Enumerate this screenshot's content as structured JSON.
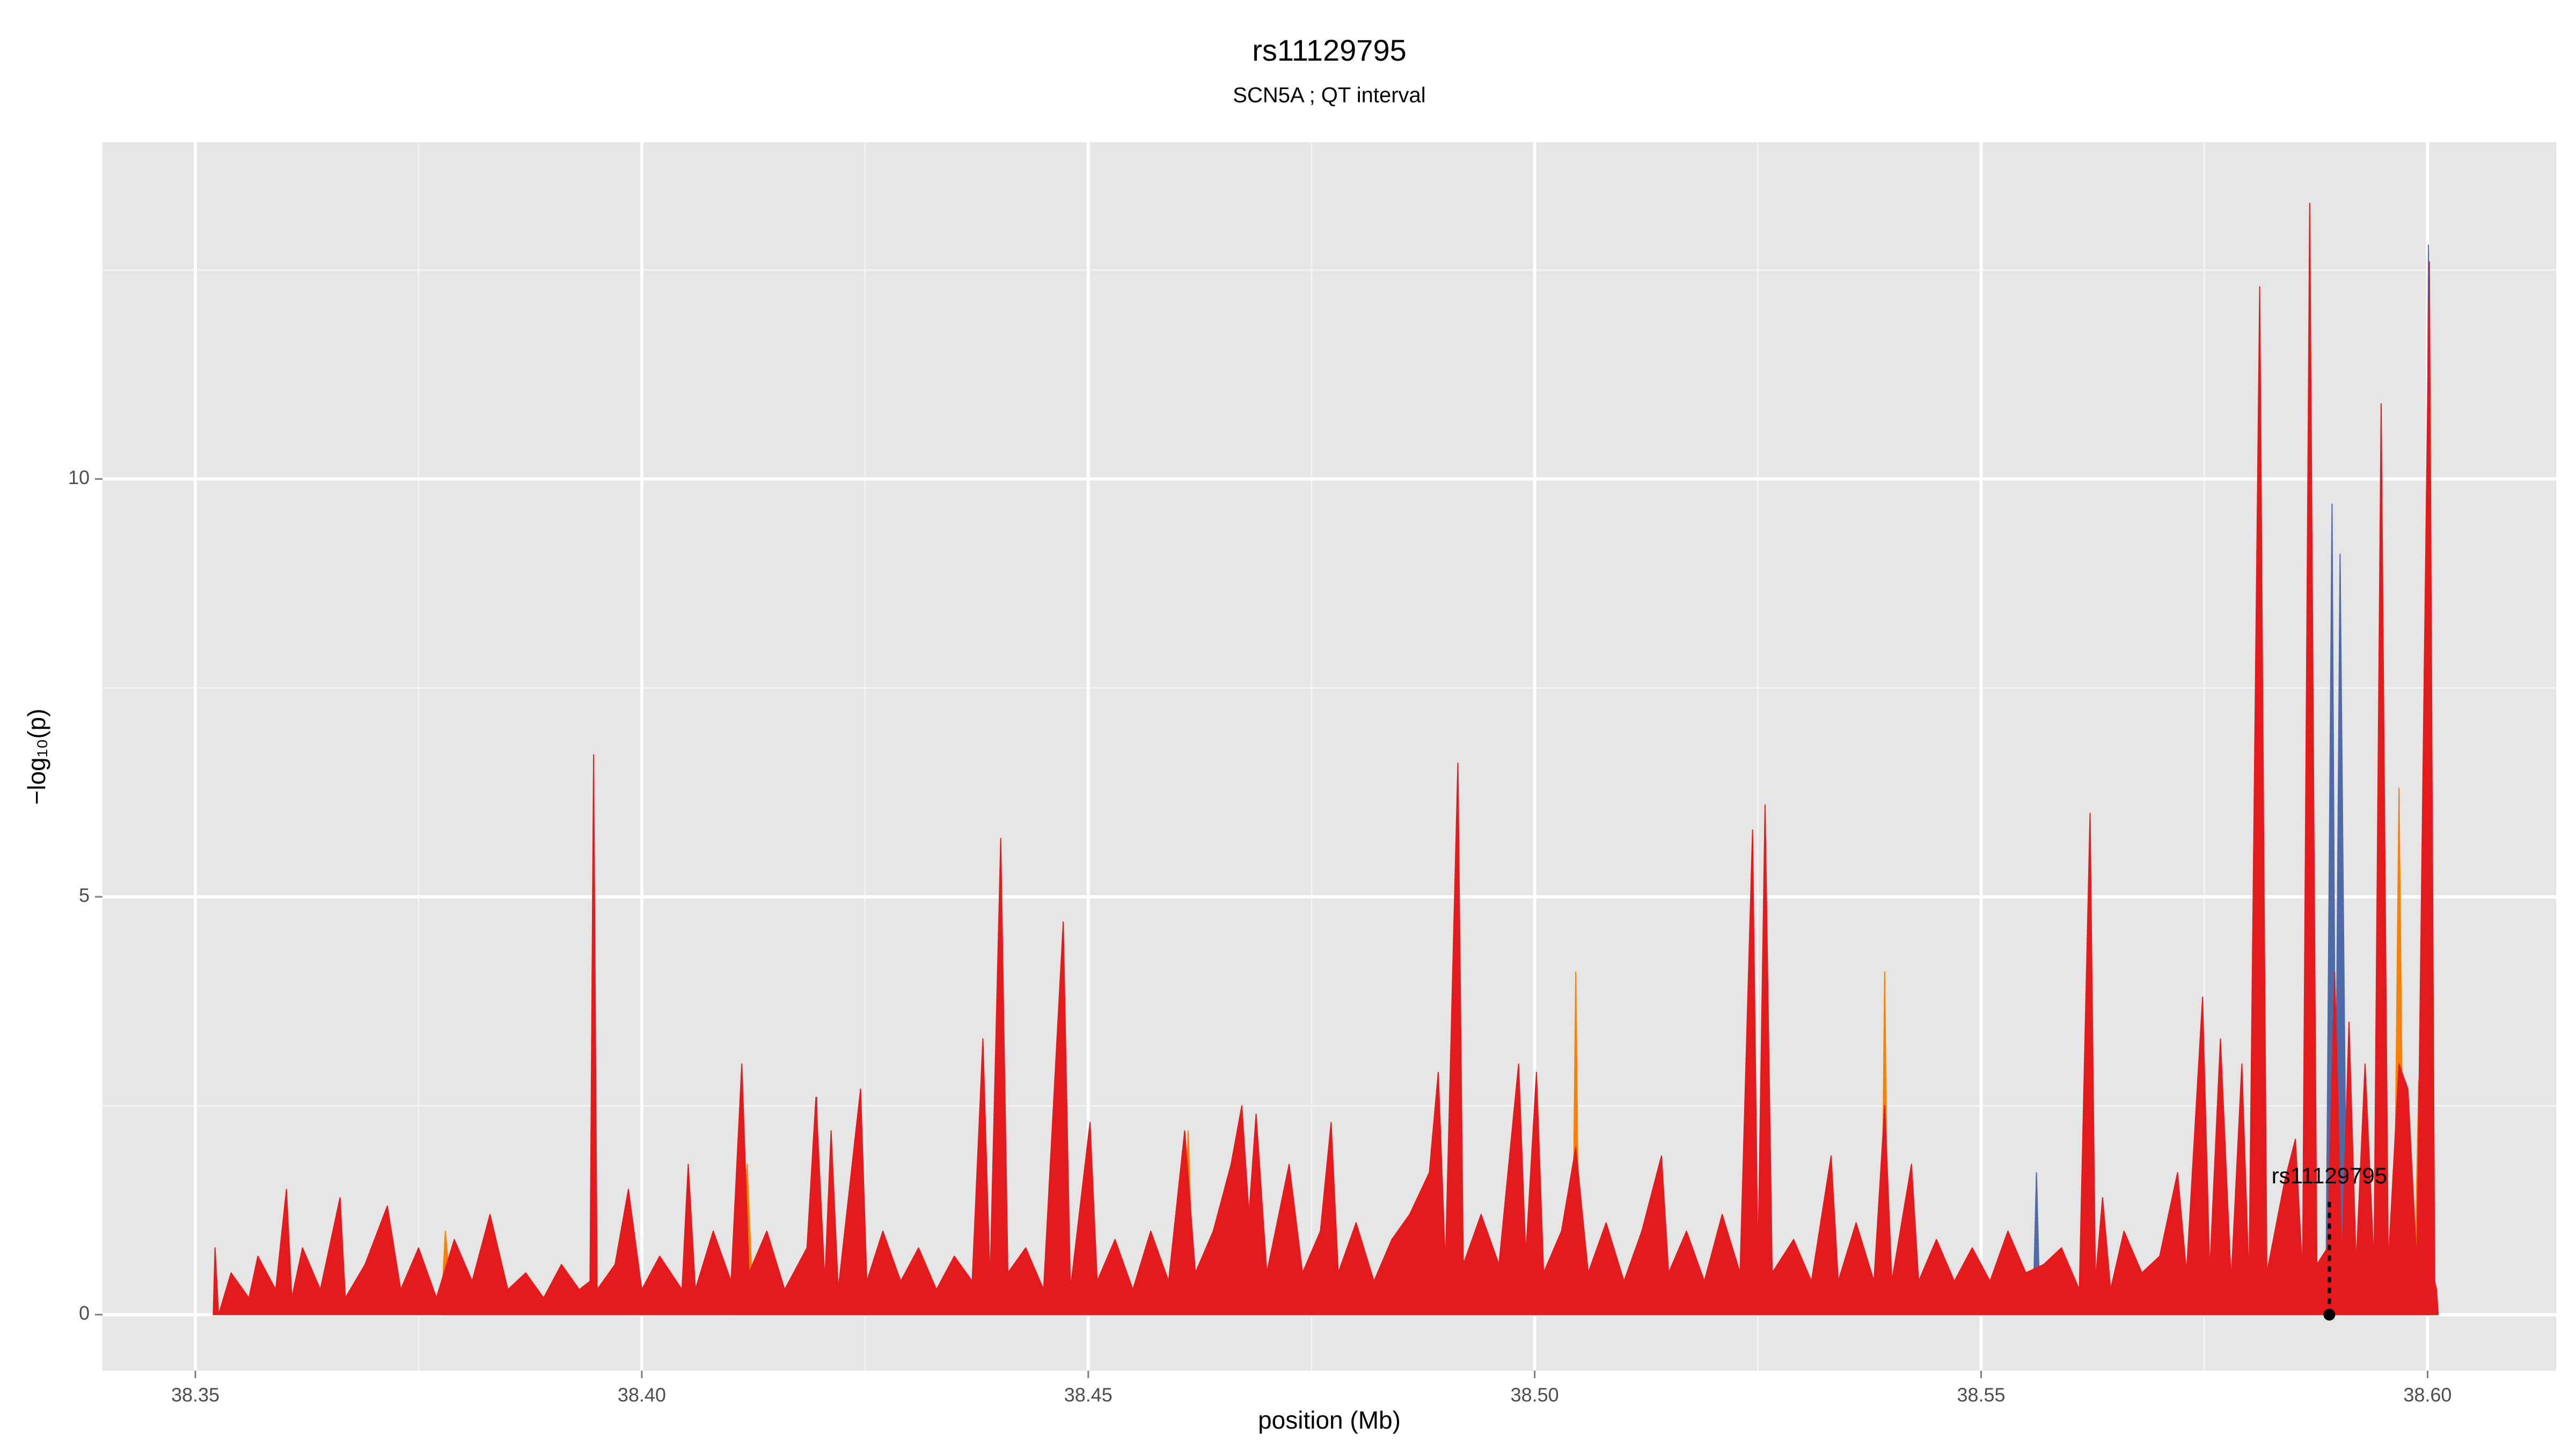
{
  "chart_data": {
    "type": "area",
    "title": "rs11129795",
    "subtitle": "SCN5A ; QT interval",
    "x_label": "position (Mb)",
    "y_label": "−log₁₀(p)",
    "xlim": [
      38.3396,
      38.6144
    ],
    "ylim": [
      -0.67,
      14.03
    ],
    "xticks": [
      38.35,
      {
        "value": 38.4,
        "label": "38.40"
      },
      38.45,
      {
        "value": 38.5,
        "label": "38.50"
      },
      38.55,
      {
        "value": 38.6,
        "label": "38.60"
      }
    ],
    "yticks": [
      0,
      5,
      10
    ],
    "x_minor_ticks": [
      38.375,
      38.425,
      38.475,
      38.525,
      38.575
    ],
    "y_minor_ticks": [
      2.5,
      7.5,
      12.5
    ],
    "grid": true,
    "series": [
      {
        "color": "#4f6aa8",
        "x": [
          38.4105,
          38.411,
          38.4115,
          38.4192,
          38.4196,
          38.42,
          38.5558,
          38.5562,
          38.5566,
          38.5886,
          38.5893,
          38.5897,
          38.5902,
          38.591,
          38.5995,
          38.6001,
          38.6008
        ],
        "values": [
          0,
          1.9,
          0,
          0,
          2.6,
          0,
          0,
          1.7,
          0,
          0,
          9.7,
          2,
          9.1,
          0,
          0,
          12.8,
          0
        ]
      },
      {
        "color": "#ff7f00",
        "x": [
          38.3775,
          38.378,
          38.3788,
          38.4108,
          38.4118,
          38.4125,
          38.4605,
          38.4612,
          38.4618,
          38.5042,
          38.5046,
          38.505,
          38.5388,
          38.5392,
          38.5396,
          38.5962,
          38.5968,
          38.5974,
          38.5985,
          38.599,
          38.5995
        ],
        "values": [
          0,
          1.0,
          0,
          0,
          1.8,
          0,
          0,
          2.2,
          0,
          0,
          4.1,
          0,
          0,
          4.1,
          0,
          0,
          6.3,
          0,
          0,
          2.8,
          0
        ]
      },
      {
        "color": "#e41a1c",
        "x": [
          38.352,
          38.3522,
          38.3526,
          38.354,
          38.356,
          38.357,
          38.359,
          38.3602,
          38.3608,
          38.362,
          38.364,
          38.3662,
          38.3668,
          38.369,
          38.3715,
          38.373,
          38.375,
          38.377,
          38.379,
          38.381,
          38.383,
          38.385,
          38.387,
          38.389,
          38.391,
          38.393,
          38.3942,
          38.3946,
          38.395,
          38.397,
          38.3985,
          38.4,
          38.402,
          38.4045,
          38.4052,
          38.406,
          38.408,
          38.41,
          38.4112,
          38.412,
          38.414,
          38.416,
          38.4185,
          38.4195,
          38.4205,
          38.4212,
          38.422,
          38.4245,
          38.4252,
          38.427,
          38.429,
          38.431,
          38.433,
          38.435,
          38.437,
          38.4382,
          38.439,
          38.4402,
          38.441,
          38.443,
          38.445,
          38.4472,
          38.448,
          38.4502,
          38.451,
          38.453,
          38.455,
          38.457,
          38.459,
          38.4608,
          38.462,
          38.464,
          38.466,
          38.4672,
          38.468,
          38.4688,
          38.47,
          38.4725,
          38.474,
          38.476,
          38.4772,
          38.478,
          38.48,
          38.482,
          38.484,
          38.486,
          38.4882,
          38.4892,
          38.49,
          38.4914,
          38.492,
          38.494,
          38.496,
          38.4982,
          38.499,
          38.5002,
          38.501,
          38.503,
          38.5046,
          38.506,
          38.508,
          38.51,
          38.512,
          38.5142,
          38.515,
          38.517,
          38.519,
          38.521,
          38.523,
          38.5244,
          38.525,
          38.5258,
          38.5266,
          38.529,
          38.531,
          38.5332,
          38.534,
          38.536,
          38.538,
          38.5392,
          38.54,
          38.5422,
          38.543,
          38.545,
          38.547,
          38.549,
          38.551,
          38.553,
          38.555,
          38.557,
          38.559,
          38.561,
          38.5622,
          38.5628,
          38.5636,
          38.5645,
          38.566,
          38.568,
          38.57,
          38.572,
          38.573,
          38.5748,
          38.5756,
          38.5768,
          38.578,
          38.5792,
          38.58,
          38.5812,
          38.582,
          38.584,
          38.5852,
          38.586,
          38.5868,
          38.5876,
          38.5888,
          38.5896,
          38.5904,
          38.5912,
          38.592,
          38.593,
          38.594,
          38.5948,
          38.5956,
          38.5968,
          38.5978,
          38.5988,
          38.6002,
          38.6008,
          38.601,
          38.6012
        ],
        "values": [
          0,
          0.8,
          0,
          0.5,
          0.2,
          0.7,
          0.3,
          1.5,
          0.2,
          0.8,
          0.3,
          1.4,
          0.2,
          0.6,
          1.3,
          0.3,
          0.8,
          0.2,
          0.9,
          0.4,
          1.2,
          0.3,
          0.5,
          0.2,
          0.6,
          0.3,
          0.4,
          6.7,
          0.3,
          0.6,
          1.5,
          0.3,
          0.7,
          0.3,
          1.8,
          0.3,
          1.0,
          0.4,
          3.0,
          0.5,
          1.0,
          0.3,
          0.8,
          2.6,
          0.4,
          2.2,
          0.3,
          2.7,
          0.4,
          1.0,
          0.4,
          0.8,
          0.3,
          0.7,
          0.4,
          3.3,
          0.4,
          5.7,
          0.5,
          0.8,
          0.3,
          4.7,
          0.3,
          2.3,
          0.4,
          0.9,
          0.3,
          1.0,
          0.4,
          2.2,
          0.5,
          1.0,
          1.8,
          2.5,
          1.2,
          2.4,
          0.5,
          1.8,
          0.5,
          1.0,
          2.3,
          0.5,
          1.1,
          0.4,
          0.9,
          1.2,
          1.7,
          2.9,
          0.6,
          6.6,
          0.6,
          1.2,
          0.6,
          3.0,
          0.7,
          2.9,
          0.5,
          1.0,
          2.0,
          0.5,
          1.1,
          0.4,
          1.0,
          1.9,
          0.5,
          1.0,
          0.4,
          1.2,
          0.5,
          5.8,
          0.6,
          6.1,
          0.5,
          0.9,
          0.4,
          1.9,
          0.4,
          1.1,
          0.4,
          2.5,
          0.4,
          1.8,
          0.4,
          0.9,
          0.4,
          0.8,
          0.4,
          1.0,
          0.5,
          0.6,
          0.8,
          0.3,
          6.0,
          0.4,
          1.4,
          0.3,
          1.0,
          0.5,
          0.7,
          1.7,
          0.5,
          3.8,
          0.5,
          3.3,
          0.4,
          3.0,
          0.4,
          12.3,
          0.5,
          1.6,
          2.1,
          0.5,
          13.3,
          0.6,
          0.8,
          4.1,
          0.6,
          3.5,
          0.6,
          3.0,
          0.6,
          10.9,
          0.6,
          3.0,
          2.7,
          0.6,
          12.6,
          0.4,
          0.3,
          0
        ]
      }
    ],
    "annotation": {
      "label": "rs11129795",
      "x": 38.589,
      "y": 0
    }
  }
}
